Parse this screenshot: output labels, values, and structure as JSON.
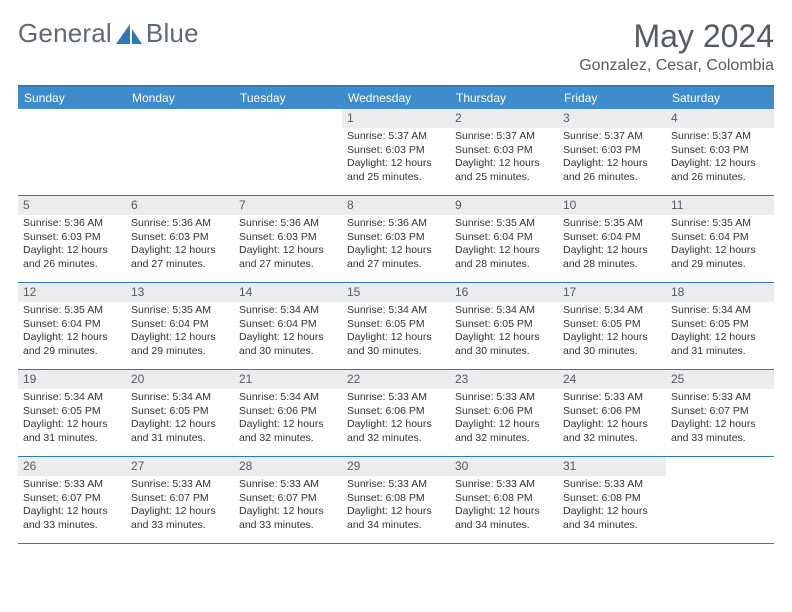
{
  "brand": {
    "general": "General",
    "blue": "Blue"
  },
  "title": "May 2024",
  "location": "Gonzalez, Cesar, Colombia",
  "colors": {
    "header_bg": "#3f8ccc",
    "header_border": "#2f79b9",
    "daynum_bg": "#ebeced",
    "text_dark": "#555b62",
    "body_text": "#333333"
  },
  "day_names": [
    "Sunday",
    "Monday",
    "Tuesday",
    "Wednesday",
    "Thursday",
    "Friday",
    "Saturday"
  ],
  "weeks": [
    [
      {
        "n": "",
        "l": []
      },
      {
        "n": "",
        "l": []
      },
      {
        "n": "",
        "l": []
      },
      {
        "n": "1",
        "l": [
          "Sunrise: 5:37 AM",
          "Sunset: 6:03 PM",
          "Daylight: 12 hours and 25 minutes."
        ]
      },
      {
        "n": "2",
        "l": [
          "Sunrise: 5:37 AM",
          "Sunset: 6:03 PM",
          "Daylight: 12 hours and 25 minutes."
        ]
      },
      {
        "n": "3",
        "l": [
          "Sunrise: 5:37 AM",
          "Sunset: 6:03 PM",
          "Daylight: 12 hours and 26 minutes."
        ]
      },
      {
        "n": "4",
        "l": [
          "Sunrise: 5:37 AM",
          "Sunset: 6:03 PM",
          "Daylight: 12 hours and 26 minutes."
        ]
      }
    ],
    [
      {
        "n": "5",
        "l": [
          "Sunrise: 5:36 AM",
          "Sunset: 6:03 PM",
          "Daylight: 12 hours and 26 minutes."
        ]
      },
      {
        "n": "6",
        "l": [
          "Sunrise: 5:36 AM",
          "Sunset: 6:03 PM",
          "Daylight: 12 hours and 27 minutes."
        ]
      },
      {
        "n": "7",
        "l": [
          "Sunrise: 5:36 AM",
          "Sunset: 6:03 PM",
          "Daylight: 12 hours and 27 minutes."
        ]
      },
      {
        "n": "8",
        "l": [
          "Sunrise: 5:36 AM",
          "Sunset: 6:03 PM",
          "Daylight: 12 hours and 27 minutes."
        ]
      },
      {
        "n": "9",
        "l": [
          "Sunrise: 5:35 AM",
          "Sunset: 6:04 PM",
          "Daylight: 12 hours and 28 minutes."
        ]
      },
      {
        "n": "10",
        "l": [
          "Sunrise: 5:35 AM",
          "Sunset: 6:04 PM",
          "Daylight: 12 hours and 28 minutes."
        ]
      },
      {
        "n": "11",
        "l": [
          "Sunrise: 5:35 AM",
          "Sunset: 6:04 PM",
          "Daylight: 12 hours and 29 minutes."
        ]
      }
    ],
    [
      {
        "n": "12",
        "l": [
          "Sunrise: 5:35 AM",
          "Sunset: 6:04 PM",
          "Daylight: 12 hours and 29 minutes."
        ]
      },
      {
        "n": "13",
        "l": [
          "Sunrise: 5:35 AM",
          "Sunset: 6:04 PM",
          "Daylight: 12 hours and 29 minutes."
        ]
      },
      {
        "n": "14",
        "l": [
          "Sunrise: 5:34 AM",
          "Sunset: 6:04 PM",
          "Daylight: 12 hours and 30 minutes."
        ]
      },
      {
        "n": "15",
        "l": [
          "Sunrise: 5:34 AM",
          "Sunset: 6:05 PM",
          "Daylight: 12 hours and 30 minutes."
        ]
      },
      {
        "n": "16",
        "l": [
          "Sunrise: 5:34 AM",
          "Sunset: 6:05 PM",
          "Daylight: 12 hours and 30 minutes."
        ]
      },
      {
        "n": "17",
        "l": [
          "Sunrise: 5:34 AM",
          "Sunset: 6:05 PM",
          "Daylight: 12 hours and 30 minutes."
        ]
      },
      {
        "n": "18",
        "l": [
          "Sunrise: 5:34 AM",
          "Sunset: 6:05 PM",
          "Daylight: 12 hours and 31 minutes."
        ]
      }
    ],
    [
      {
        "n": "19",
        "l": [
          "Sunrise: 5:34 AM",
          "Sunset: 6:05 PM",
          "Daylight: 12 hours and 31 minutes."
        ]
      },
      {
        "n": "20",
        "l": [
          "Sunrise: 5:34 AM",
          "Sunset: 6:05 PM",
          "Daylight: 12 hours and 31 minutes."
        ]
      },
      {
        "n": "21",
        "l": [
          "Sunrise: 5:34 AM",
          "Sunset: 6:06 PM",
          "Daylight: 12 hours and 32 minutes."
        ]
      },
      {
        "n": "22",
        "l": [
          "Sunrise: 5:33 AM",
          "Sunset: 6:06 PM",
          "Daylight: 12 hours and 32 minutes."
        ]
      },
      {
        "n": "23",
        "l": [
          "Sunrise: 5:33 AM",
          "Sunset: 6:06 PM",
          "Daylight: 12 hours and 32 minutes."
        ]
      },
      {
        "n": "24",
        "l": [
          "Sunrise: 5:33 AM",
          "Sunset: 6:06 PM",
          "Daylight: 12 hours and 32 minutes."
        ]
      },
      {
        "n": "25",
        "l": [
          "Sunrise: 5:33 AM",
          "Sunset: 6:07 PM",
          "Daylight: 12 hours and 33 minutes."
        ]
      }
    ],
    [
      {
        "n": "26",
        "l": [
          "Sunrise: 5:33 AM",
          "Sunset: 6:07 PM",
          "Daylight: 12 hours and 33 minutes."
        ]
      },
      {
        "n": "27",
        "l": [
          "Sunrise: 5:33 AM",
          "Sunset: 6:07 PM",
          "Daylight: 12 hours and 33 minutes."
        ]
      },
      {
        "n": "28",
        "l": [
          "Sunrise: 5:33 AM",
          "Sunset: 6:07 PM",
          "Daylight: 12 hours and 33 minutes."
        ]
      },
      {
        "n": "29",
        "l": [
          "Sunrise: 5:33 AM",
          "Sunset: 6:08 PM",
          "Daylight: 12 hours and 34 minutes."
        ]
      },
      {
        "n": "30",
        "l": [
          "Sunrise: 5:33 AM",
          "Sunset: 6:08 PM",
          "Daylight: 12 hours and 34 minutes."
        ]
      },
      {
        "n": "31",
        "l": [
          "Sunrise: 5:33 AM",
          "Sunset: 6:08 PM",
          "Daylight: 12 hours and 34 minutes."
        ]
      },
      {
        "n": "",
        "l": []
      }
    ]
  ]
}
